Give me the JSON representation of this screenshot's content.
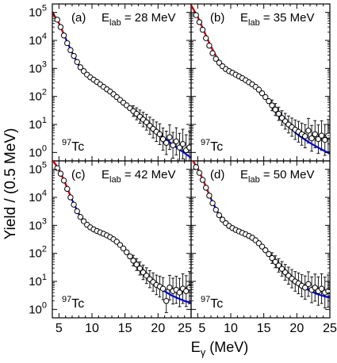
{
  "ylabel": "Yield / (0.5 MeV)",
  "xlabel_main": "E",
  "xlabel_sub": "γ",
  "xlabel_unit": " (MeV)",
  "colors": {
    "fit": "#0000cc",
    "red": "#cc0000",
    "marker_fill": "#ffffff",
    "marker_edge": "#000000"
  },
  "chart_data": [
    {
      "type": "scatter",
      "panel": "(a)",
      "label_main": "E",
      "label_sub": "lab",
      "label_value": " = 28 MeV",
      "nucleus_mass": "97",
      "nucleus_symbol": "Tc",
      "xlim": [
        4,
        25
      ],
      "ylim": [
        0.5,
        200000
      ],
      "yscale": "log",
      "x_ticks": [
        "5",
        "10",
        "15",
        "20",
        "25"
      ],
      "y_ticks": [
        "10^0",
        "10^1",
        "10^2",
        "10^3",
        "10^4",
        "10^5"
      ],
      "series": [
        {
          "points": [
            [
              4.75,
              55000
            ],
            [
              5.25,
              30000
            ],
            [
              5.75,
              15000
            ],
            [
              6.25,
              8000
            ],
            [
              6.75,
              4500
            ],
            [
              7.25,
              2800
            ],
            [
              7.75,
              1700
            ],
            [
              8.25,
              1100
            ],
            [
              8.75,
              800
            ],
            [
              9.25,
              600
            ],
            [
              9.75,
              480
            ],
            [
              10.25,
              400
            ],
            [
              10.75,
              330
            ],
            [
              11.25,
              270
            ],
            [
              11.75,
              220
            ],
            [
              12.25,
              180
            ],
            [
              12.75,
              150
            ],
            [
              13.25,
              120
            ],
            [
              13.75,
              95
            ],
            [
              14.25,
              75
            ],
            [
              14.75,
              60
            ],
            [
              15.25,
              48
            ],
            [
              15.75,
              38
            ],
            [
              16.25,
              30
            ],
            [
              16.75,
              24
            ],
            [
              17.25,
              19
            ],
            [
              17.75,
              15
            ],
            [
              18.25,
              12
            ],
            [
              18.75,
              9
            ],
            [
              19.25,
              7
            ],
            [
              19.75,
              5.5
            ],
            [
              20.25,
              4.5
            ],
            [
              20.75,
              3
            ],
            [
              21.25,
              2.2
            ],
            [
              21.75,
              3.5
            ],
            [
              22.25,
              1.8
            ],
            [
              22.75,
              2.5
            ],
            [
              23.25,
              1.5
            ],
            [
              23.75,
              2.0
            ],
            [
              24.25,
              1.2
            ],
            [
              24.75,
              1.5
            ]
          ]
        }
      ],
      "fit": [
        [
          4,
          100000
        ],
        [
          5,
          42000
        ],
        [
          6,
          12000
        ],
        [
          7,
          3600
        ],
        [
          8,
          1300
        ],
        [
          9,
          650
        ],
        [
          10,
          430
        ],
        [
          11,
          290
        ],
        [
          12,
          195
        ],
        [
          13,
          132
        ],
        [
          14,
          86
        ],
        [
          15,
          54
        ],
        [
          16,
          33
        ],
        [
          17,
          20
        ],
        [
          18,
          12.5
        ],
        [
          19,
          7.8
        ],
        [
          20,
          5
        ],
        [
          21,
          3.2
        ],
        [
          22,
          2.1
        ],
        [
          23,
          1.4
        ],
        [
          24,
          0.95
        ],
        [
          25,
          0.65
        ]
      ],
      "red_fit": [
        [
          4,
          100000
        ],
        [
          5,
          42000
        ],
        [
          6,
          12000
        ]
      ]
    },
    {
      "type": "scatter",
      "panel": "(b)",
      "label_main": "E",
      "label_sub": "lab",
      "label_value": " = 35 MeV",
      "nucleus_mass": "97",
      "nucleus_symbol": "Tc",
      "xlim": [
        4,
        25
      ],
      "ylim": [
        0.5,
        200000
      ],
      "yscale": "log",
      "x_ticks": [
        "5",
        "10",
        "15",
        "20",
        "25"
      ],
      "y_ticks": [
        "10^0",
        "10^1",
        "10^2",
        "10^3",
        "10^4",
        "10^5"
      ],
      "series": [
        {
          "points": [
            [
              4.75,
              80000
            ],
            [
              5.25,
              45000
            ],
            [
              5.75,
              24000
            ],
            [
              6.25,
              12000
            ],
            [
              6.75,
              6500
            ],
            [
              7.25,
              3500
            ],
            [
              7.75,
              2200
            ],
            [
              8.25,
              1600
            ],
            [
              8.75,
              1200
            ],
            [
              9.25,
              950
            ],
            [
              9.75,
              800
            ],
            [
              10.25,
              700
            ],
            [
              10.75,
              600
            ],
            [
              11.25,
              520
            ],
            [
              11.75,
              450
            ],
            [
              12.25,
              380
            ],
            [
              12.75,
              320
            ],
            [
              13.25,
              270
            ],
            [
              13.75,
              220
            ],
            [
              14.25,
              175
            ],
            [
              14.75,
              130
            ],
            [
              15.25,
              95
            ],
            [
              15.75,
              68
            ],
            [
              16.25,
              48
            ],
            [
              16.75,
              34
            ],
            [
              17.25,
              24
            ],
            [
              17.75,
              17
            ],
            [
              18.25,
              13
            ],
            [
              18.75,
              10
            ],
            [
              19.25,
              8
            ],
            [
              19.75,
              6.5
            ],
            [
              20.25,
              5.5
            ],
            [
              20.75,
              4.5
            ],
            [
              21.25,
              3.8
            ],
            [
              21.75,
              6
            ],
            [
              22.25,
              3.2
            ],
            [
              22.75,
              4.5
            ],
            [
              23.25,
              3
            ],
            [
              23.75,
              4
            ],
            [
              24.25,
              2.8
            ],
            [
              24.75,
              4
            ]
          ]
        }
      ],
      "fit": [
        [
          4,
          180000
        ],
        [
          5,
          70000
        ],
        [
          6,
          20000
        ],
        [
          7,
          6000
        ],
        [
          8,
          2200
        ],
        [
          9,
          1100
        ],
        [
          10,
          750
        ],
        [
          11,
          560
        ],
        [
          12,
          420
        ],
        [
          13,
          300
        ],
        [
          14,
          190
        ],
        [
          15,
          105
        ],
        [
          16,
          52
        ],
        [
          17,
          25
        ],
        [
          18,
          13
        ],
        [
          19,
          7.5
        ],
        [
          20,
          4.6
        ],
        [
          21,
          3.1
        ],
        [
          22,
          2.2
        ],
        [
          23,
          1.6
        ],
        [
          24,
          1.2
        ],
        [
          25,
          0.9
        ]
      ],
      "red_fit": [
        [
          4,
          180000
        ],
        [
          5,
          70000
        ],
        [
          6,
          20000
        ],
        [
          7,
          6000
        ],
        [
          8,
          2200
        ]
      ]
    },
    {
      "type": "scatter",
      "panel": "(c)",
      "label_main": "E",
      "label_sub": "lab",
      "label_value": " = 42 MeV",
      "nucleus_mass": "97",
      "nucleus_symbol": "Tc",
      "xlim": [
        4,
        25
      ],
      "ylim": [
        0.5,
        200000
      ],
      "yscale": "log",
      "x_ticks": [
        "5",
        "10",
        "15",
        "20",
        "25"
      ],
      "y_ticks": [
        "10^0",
        "10^1",
        "10^2",
        "10^3",
        "10^4",
        "10^5"
      ],
      "series": [
        {
          "points": [
            [
              4.75,
              110000
            ],
            [
              5.25,
              70000
            ],
            [
              5.75,
              40000
            ],
            [
              6.25,
              20000
            ],
            [
              6.75,
              10000
            ],
            [
              7.25,
              5500
            ],
            [
              7.75,
              3200
            ],
            [
              8.25,
              2000
            ],
            [
              8.75,
              1400
            ],
            [
              9.25,
              1050
            ],
            [
              9.75,
              850
            ],
            [
              10.25,
              720
            ],
            [
              10.75,
              630
            ],
            [
              11.25,
              560
            ],
            [
              11.75,
              500
            ],
            [
              12.25,
              440
            ],
            [
              12.75,
              380
            ],
            [
              13.25,
              320
            ],
            [
              13.75,
              260
            ],
            [
              14.25,
              200
            ],
            [
              14.75,
              150
            ],
            [
              15.25,
              110
            ],
            [
              15.75,
              78
            ],
            [
              16.25,
              55
            ],
            [
              16.75,
              40
            ],
            [
              17.25,
              29
            ],
            [
              17.75,
              21
            ],
            [
              18.25,
              16
            ],
            [
              18.75,
              12
            ],
            [
              19.25,
              9.5
            ],
            [
              19.75,
              7.5
            ],
            [
              20.25,
              6.5
            ],
            [
              20.75,
              5.5
            ],
            [
              21.25,
              2.0
            ],
            [
              21.75,
              6
            ],
            [
              22.25,
              4.5
            ],
            [
              22.75,
              5
            ],
            [
              23.25,
              4
            ],
            [
              23.75,
              5.5
            ],
            [
              24.25,
              4.5
            ],
            [
              24.75,
              6
            ]
          ]
        }
      ],
      "fit": [
        [
          4,
          220000
        ],
        [
          5,
          100000
        ],
        [
          6,
          30000
        ],
        [
          7,
          8000
        ],
        [
          8,
          2600
        ],
        [
          9,
          1250
        ],
        [
          10,
          800
        ],
        [
          11,
          600
        ],
        [
          12,
          470
        ],
        [
          13,
          350
        ],
        [
          14,
          230
        ],
        [
          15,
          130
        ],
        [
          16,
          68
        ],
        [
          17,
          34
        ],
        [
          18,
          18
        ],
        [
          19,
          10.5
        ],
        [
          20,
          6.5
        ],
        [
          21,
          4.4
        ],
        [
          22,
          3.2
        ],
        [
          23,
          2.5
        ],
        [
          24,
          2.0
        ],
        [
          25,
          1.7
        ]
      ],
      "red_fit": [
        [
          4,
          220000
        ],
        [
          5,
          100000
        ],
        [
          6,
          30000
        ],
        [
          7,
          8000
        ]
      ]
    },
    {
      "type": "scatter",
      "panel": "(d)",
      "label_main": "E",
      "label_sub": "lab",
      "label_value": " = 50 MeV",
      "nucleus_mass": "97",
      "nucleus_symbol": "Tc",
      "xlim": [
        4,
        25
      ],
      "ylim": [
        0.5,
        200000
      ],
      "yscale": "log",
      "x_ticks": [
        "5",
        "10",
        "15",
        "20",
        "25"
      ],
      "y_ticks": [
        "10^0",
        "10^1",
        "10^2",
        "10^3",
        "10^4",
        "10^5"
      ],
      "series": [
        {
          "points": [
            [
              4.75,
              120000
            ],
            [
              5.25,
              75000
            ],
            [
              5.75,
              42000
            ],
            [
              6.25,
              22000
            ],
            [
              6.75,
              11500
            ],
            [
              7.25,
              6200
            ],
            [
              7.75,
              3600
            ],
            [
              8.25,
              2300
            ],
            [
              8.75,
              1600
            ],
            [
              9.25,
              1200
            ],
            [
              9.75,
              950
            ],
            [
              10.25,
              800
            ],
            [
              10.75,
              690
            ],
            [
              11.25,
              610
            ],
            [
              11.75,
              540
            ],
            [
              12.25,
              480
            ],
            [
              12.75,
              420
            ],
            [
              13.25,
              360
            ],
            [
              13.75,
              295
            ],
            [
              14.25,
              230
            ],
            [
              14.75,
              175
            ],
            [
              15.25,
              130
            ],
            [
              15.75,
              95
            ],
            [
              16.25,
              68
            ],
            [
              16.75,
              50
            ],
            [
              17.25,
              37
            ],
            [
              17.75,
              28
            ],
            [
              18.25,
              21
            ],
            [
              18.75,
              16
            ],
            [
              19.25,
              12.5
            ],
            [
              19.75,
              10
            ],
            [
              20.25,
              8.5
            ],
            [
              20.75,
              7
            ],
            [
              21.25,
              6
            ],
            [
              21.75,
              8
            ],
            [
              22.25,
              5
            ],
            [
              22.75,
              6
            ],
            [
              23.25,
              4.5
            ],
            [
              23.75,
              5.5
            ],
            [
              24.25,
              4
            ],
            [
              24.75,
              4.5
            ]
          ]
        }
      ],
      "fit": [
        [
          4,
          250000
        ],
        [
          5,
          110000
        ],
        [
          6,
          33000
        ],
        [
          7,
          9000
        ],
        [
          8,
          3000
        ],
        [
          9,
          1450
        ],
        [
          10,
          900
        ],
        [
          11,
          680
        ],
        [
          12,
          530
        ],
        [
          13,
          400
        ],
        [
          14,
          270
        ],
        [
          15,
          160
        ],
        [
          16,
          88
        ],
        [
          17,
          46
        ],
        [
          18,
          25
        ],
        [
          19,
          14.5
        ],
        [
          20,
          9
        ],
        [
          21,
          6.2
        ],
        [
          22,
          4.6
        ],
        [
          23,
          3.6
        ],
        [
          24,
          3.0
        ],
        [
          25,
          2.6
        ]
      ],
      "red_fit": [
        [
          4,
          250000
        ],
        [
          5,
          110000
        ],
        [
          6,
          33000
        ],
        [
          7,
          9000
        ]
      ]
    }
  ]
}
